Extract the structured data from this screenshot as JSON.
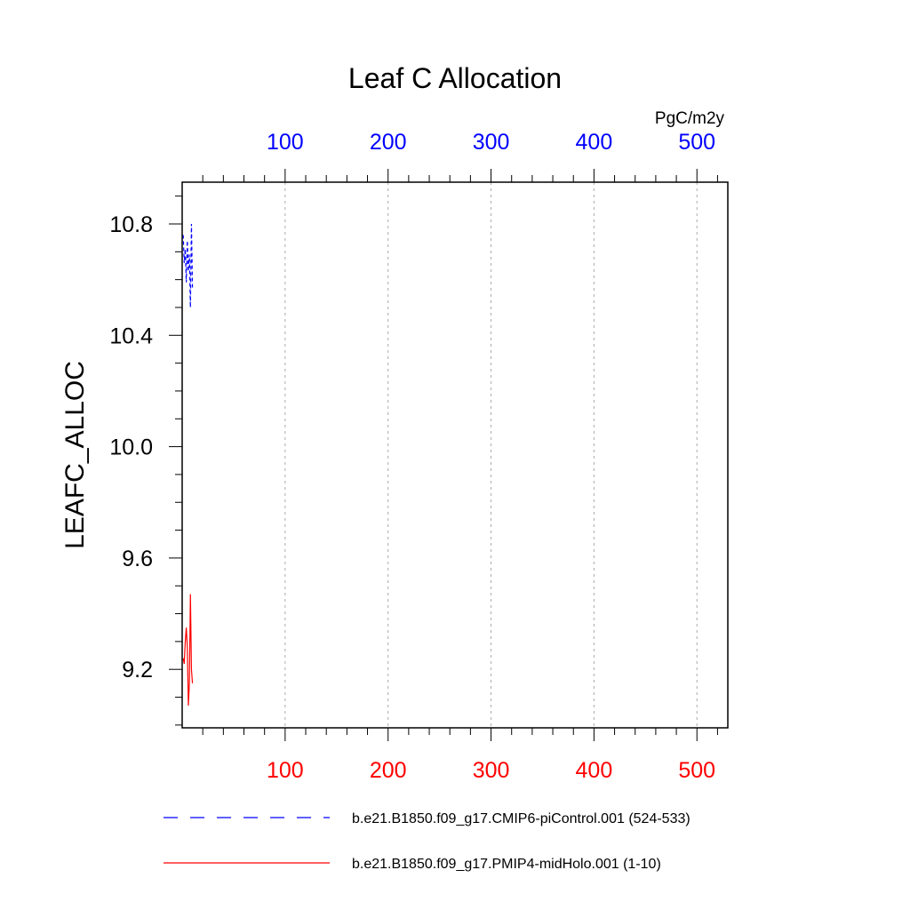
{
  "chart_data": {
    "type": "line",
    "title": "Leaf C Allocation",
    "ylabel": "LEAFC_ALLOC",
    "top_axis_units": "PgC/m2y",
    "xlim": [
      0,
      530
    ],
    "ylim": [
      8.99,
      10.95
    ],
    "grid_x": true,
    "x_ticks": [
      100,
      200,
      300,
      400,
      500
    ],
    "y_ticks": [
      9.2,
      9.6,
      10.0,
      10.4,
      10.8
    ],
    "y_tick_labels": [
      "9.2",
      "9.6",
      "10.0",
      "10.4",
      "10.8"
    ],
    "top_axis_color": "#0000ff",
    "bottom_axis_color": "#ff0000",
    "legend_placement": "bottom",
    "series": [
      {
        "name": "b.e21.B1850.f09_g17.CMIP6-piControl.001 (524-533)",
        "color": "#0000ff",
        "dash": "dashed",
        "x": [
          1,
          2,
          3,
          4,
          5,
          6,
          7,
          8,
          9,
          10
        ],
        "y": [
          10.76,
          10.66,
          10.71,
          10.59,
          10.74,
          10.63,
          10.69,
          10.5,
          10.8,
          10.57
        ]
      },
      {
        "name": "b.e21.B1850.f09_g17.PMIP4-midHolo.001 (1-10)",
        "color": "#ff0000",
        "dash": "solid",
        "x": [
          1,
          2,
          3,
          4,
          5,
          6,
          7,
          8,
          9,
          10
        ],
        "y": [
          9.24,
          9.22,
          9.3,
          9.35,
          9.28,
          9.07,
          9.15,
          9.47,
          9.2,
          9.15
        ]
      }
    ]
  }
}
